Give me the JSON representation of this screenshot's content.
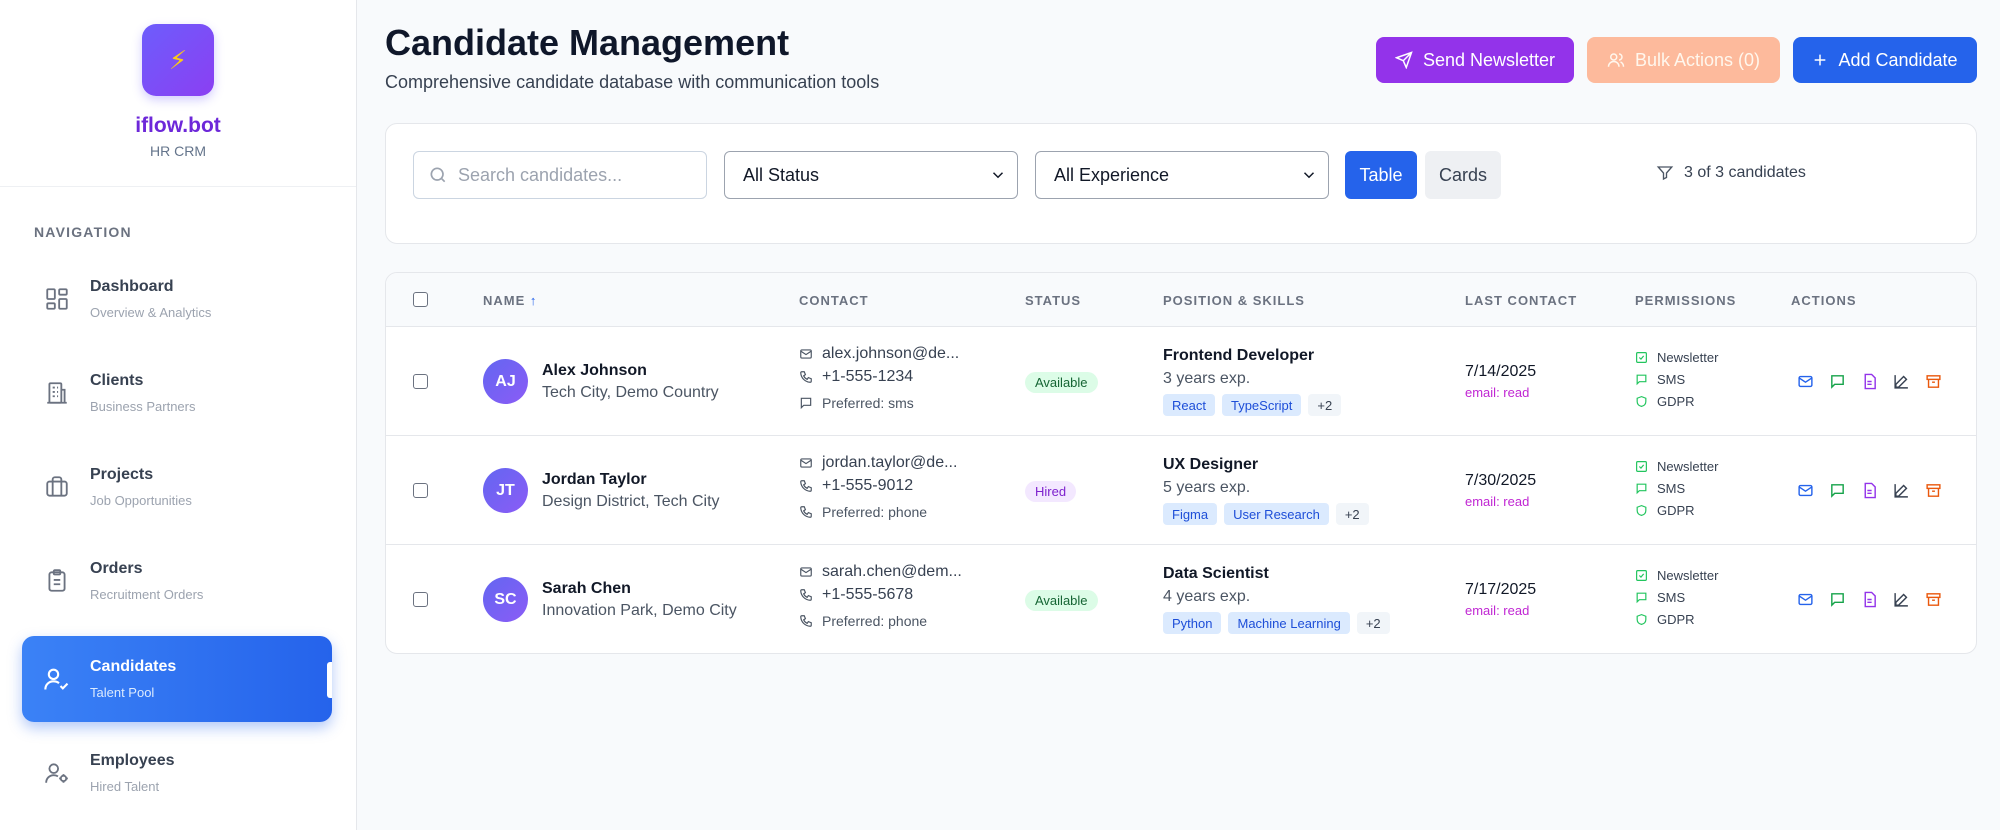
{
  "brand": {
    "logo_glyph": "⚡",
    "name": "iflow.bot",
    "subtitle": "HR CRM"
  },
  "sidebar": {
    "heading": "NAVIGATION",
    "items": [
      {
        "label": "Dashboard",
        "sub": "Overview & Analytics",
        "icon": "dashboard-icon",
        "active": false
      },
      {
        "label": "Clients",
        "sub": "Business Partners",
        "icon": "building-icon",
        "active": false
      },
      {
        "label": "Projects",
        "sub": "Job Opportunities",
        "icon": "briefcase-icon",
        "active": false
      },
      {
        "label": "Orders",
        "sub": "Recruitment Orders",
        "icon": "clipboard-icon",
        "active": false
      },
      {
        "label": "Candidates",
        "sub": "Talent Pool",
        "icon": "user-check-icon",
        "active": true
      },
      {
        "label": "Employees",
        "sub": "Hired Talent",
        "icon": "user-gear-icon",
        "active": false
      }
    ]
  },
  "header": {
    "title": "Candidate Management",
    "subtitle": "Comprehensive candidate database with communication tools",
    "send_newsletter": "Send Newsletter",
    "bulk_actions": "Bulk Actions (0)",
    "add_candidate": "Add Candidate"
  },
  "filters": {
    "search_placeholder": "Search candidates...",
    "status_value": "All Status",
    "experience_value": "All Experience",
    "view_table": "Table",
    "view_cards": "Cards",
    "count_text": "3 of 3 candidates"
  },
  "table": {
    "columns": {
      "name": "NAME",
      "sort_indicator": "↑",
      "contact": "CONTACT",
      "status": "STATUS",
      "position": "POSITION & SKILLS",
      "last_contact": "LAST CONTACT",
      "permissions": "PERMISSIONS",
      "actions": "ACTIONS"
    },
    "rows": [
      {
        "initials": "AJ",
        "name": "Alex Johnson",
        "location": "Tech City, Demo Country",
        "email": "alex.johnson@de...",
        "phone": "+1-555-1234",
        "preferred": "Preferred: sms",
        "status": "Available",
        "status_color": "#166534",
        "position": "Frontend Developer",
        "experience": "3 years exp.",
        "skills": [
          "React",
          "TypeScript"
        ],
        "more": "+2",
        "last_contact": "7/14/2025",
        "last_meta": "email: read",
        "permissions": [
          "Newsletter",
          "SMS",
          "GDPR"
        ]
      },
      {
        "initials": "JT",
        "name": "Jordan Taylor",
        "location": "Design District, Tech City",
        "email": "jordan.taylor@de...",
        "phone": "+1-555-9012",
        "preferred": "Preferred: phone",
        "status": "Hired",
        "status_color": "#7e22ce",
        "position": "UX Designer",
        "experience": "5 years exp.",
        "skills": [
          "Figma",
          "User Research"
        ],
        "more": "+2",
        "last_contact": "7/30/2025",
        "last_meta": "email: read",
        "permissions": [
          "Newsletter",
          "SMS",
          "GDPR"
        ]
      },
      {
        "initials": "SC",
        "name": "Sarah Chen",
        "location": "Innovation Park, Demo City",
        "email": "sarah.chen@dem...",
        "phone": "+1-555-5678",
        "preferred": "Preferred: phone",
        "status": "Available",
        "status_color": "#166534",
        "position": "Data Scientist",
        "experience": "4 years exp.",
        "skills": [
          "Python",
          "Machine Learning"
        ],
        "more": "+2",
        "last_contact": "7/17/2025",
        "last_meta": "email: read",
        "permissions": [
          "Newsletter",
          "SMS",
          "GDPR"
        ]
      }
    ]
  },
  "colors": {
    "primary": "#2563eb",
    "purple": "#9333ea",
    "bulk": "#fdba9c",
    "brand": "#6d28d9"
  }
}
